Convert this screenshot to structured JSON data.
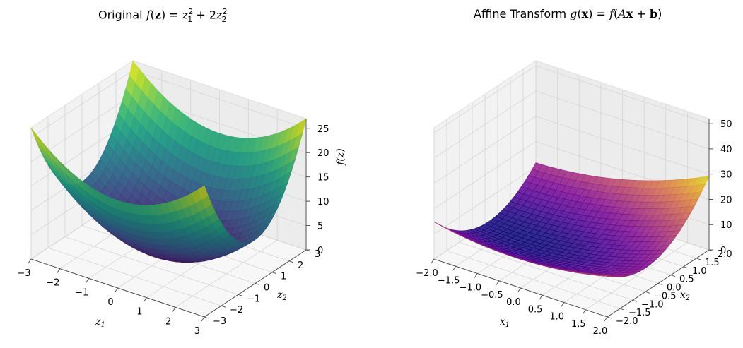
{
  "chart_data": [
    {
      "type": "surface3d",
      "title": "Original f(z) = z1^2 + 2z2^2",
      "function": "z1^2 + 2*z2^2",
      "colormap": "viridis",
      "xlabel": "z1",
      "ylabel": "z2",
      "zlabel": "f(z)",
      "xlim": [
        -3,
        3
      ],
      "ylim": [
        -3,
        3
      ],
      "zlim": [
        0,
        27
      ],
      "xticks": [
        "−3",
        "−2",
        "−1",
        "0",
        "1",
        "2",
        "3"
      ],
      "yticks": [
        "−3",
        "−2",
        "−1",
        "0",
        "1",
        "2",
        "3"
      ],
      "zticks": [
        "0",
        "5",
        "10",
        "15",
        "20",
        "25"
      ]
    },
    {
      "type": "surface3d",
      "title": "Affine Transform g(x) = f(Ax + b)",
      "function": "f(Ax + b)",
      "colormap": "plasma",
      "xlabel": "x1",
      "ylabel": "x2",
      "zlabel": "",
      "xlim": [
        -2,
        2
      ],
      "ylim": [
        -2,
        2
      ],
      "zlim": [
        0,
        52
      ],
      "xticks": [
        "−2.0",
        "−1.5",
        "−1.0",
        "−0.5",
        "0.0",
        "0.5",
        "1.0",
        "1.5",
        "2.0"
      ],
      "yticks": [
        "−2.0",
        "−1.5",
        "−1.0",
        "−0.5",
        "0.0",
        "0.5",
        "1.0",
        "1.5",
        "2.0"
      ],
      "zticks": [
        "0",
        "10",
        "20",
        "30",
        "40",
        "50"
      ]
    }
  ],
  "titles": {
    "left": {
      "prefix": "Original ",
      "f": "f",
      "z": "z",
      "eq": ") = ",
      "t1": "z",
      "s1": "1",
      "sq": "2",
      "plus": " + 2",
      "t2": "z",
      "s2": "2"
    },
    "right": {
      "prefix": "Affine Transform ",
      "g": "g",
      "x": "x",
      "eq": ") = ",
      "f": "f",
      "A": "A",
      "x2": "x",
      "plus": " + ",
      "b": "b"
    }
  }
}
